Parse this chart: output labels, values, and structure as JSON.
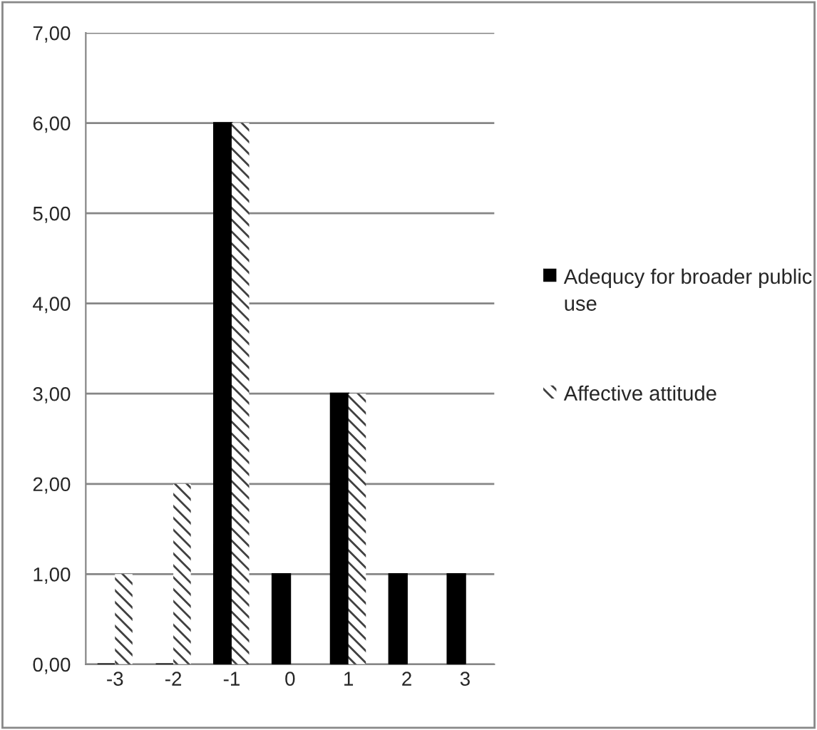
{
  "chart_data": {
    "type": "bar",
    "categories": [
      "-3",
      "-2",
      "-1",
      "0",
      "1",
      "2",
      "3"
    ],
    "series": [
      {
        "name": "Adequcy for broader public use",
        "color": "#000000",
        "values": [
          0,
          0,
          6,
          1,
          3,
          1,
          1
        ]
      },
      {
        "name": "Affective attitude",
        "color": "#404040",
        "values": [
          1,
          2,
          6,
          0,
          3,
          0,
          0
        ]
      }
    ],
    "ylim": [
      0,
      7
    ],
    "yticks": [
      {
        "value": 0,
        "label": "0,00"
      },
      {
        "value": 1,
        "label": "1,00"
      },
      {
        "value": 2,
        "label": "2,00"
      },
      {
        "value": 3,
        "label": "3,00"
      },
      {
        "value": 4,
        "label": "4,00"
      },
      {
        "value": 5,
        "label": "5,00"
      },
      {
        "value": 6,
        "label": "6,00"
      },
      {
        "value": 7,
        "label": "7,00"
      }
    ],
    "grid": "y",
    "legend": "right"
  }
}
